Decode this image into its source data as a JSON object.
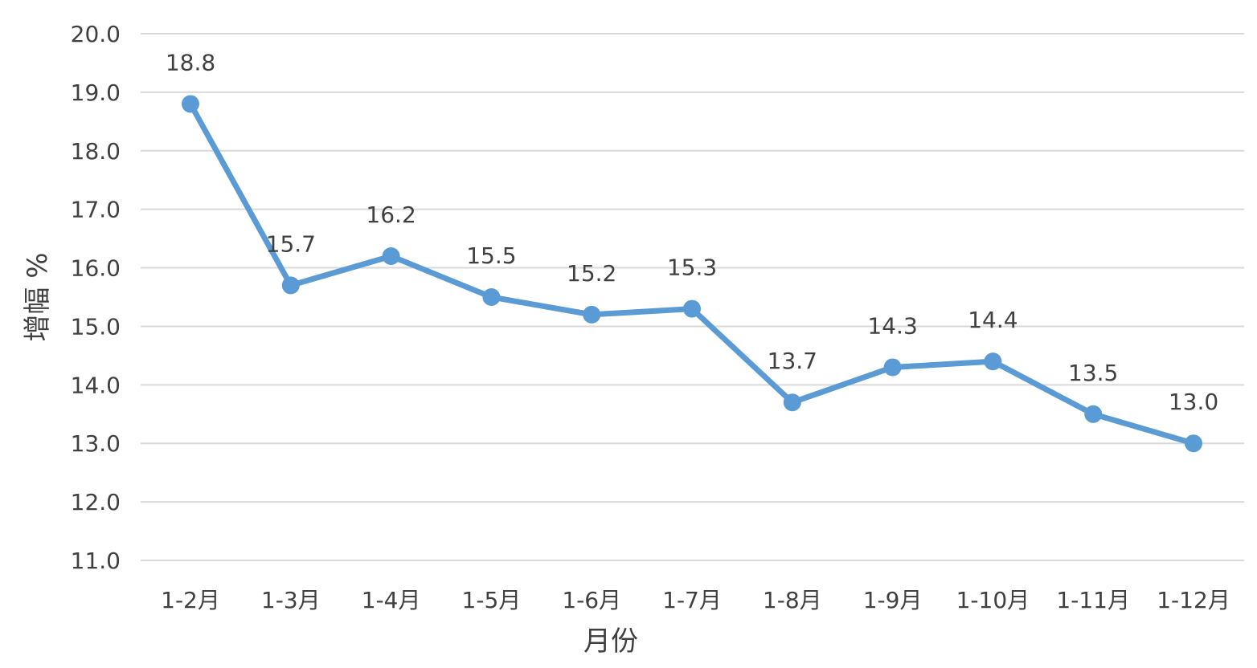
{
  "chart_data": {
    "type": "line",
    "title": "",
    "xlabel": "月份",
    "ylabel": "增幅 %",
    "categories": [
      "1-2月",
      "1-3月",
      "1-4月",
      "1-5月",
      "1-6月",
      "1-7月",
      "1-8月",
      "1-9月",
      "1-10月",
      "1-11月",
      "1-12月"
    ],
    "series": [
      {
        "values": [
          18.8,
          15.7,
          16.2,
          15.5,
          15.2,
          15.3,
          13.7,
          14.3,
          14.4,
          13.5,
          13.0
        ],
        "color": "#5b9bd5"
      }
    ],
    "ylim": [
      11.0,
      20.0
    ],
    "yticks": [
      "11.0",
      "12.0",
      "13.0",
      "14.0",
      "15.0",
      "16.0",
      "17.0",
      "18.0",
      "19.0",
      "20.0"
    ],
    "data_labels": [
      "18.8",
      "15.7",
      "16.2",
      "15.5",
      "15.2",
      "15.3",
      "13.7",
      "14.3",
      "14.4",
      "13.5",
      "13.0"
    ],
    "grid": true,
    "legend": "none"
  }
}
